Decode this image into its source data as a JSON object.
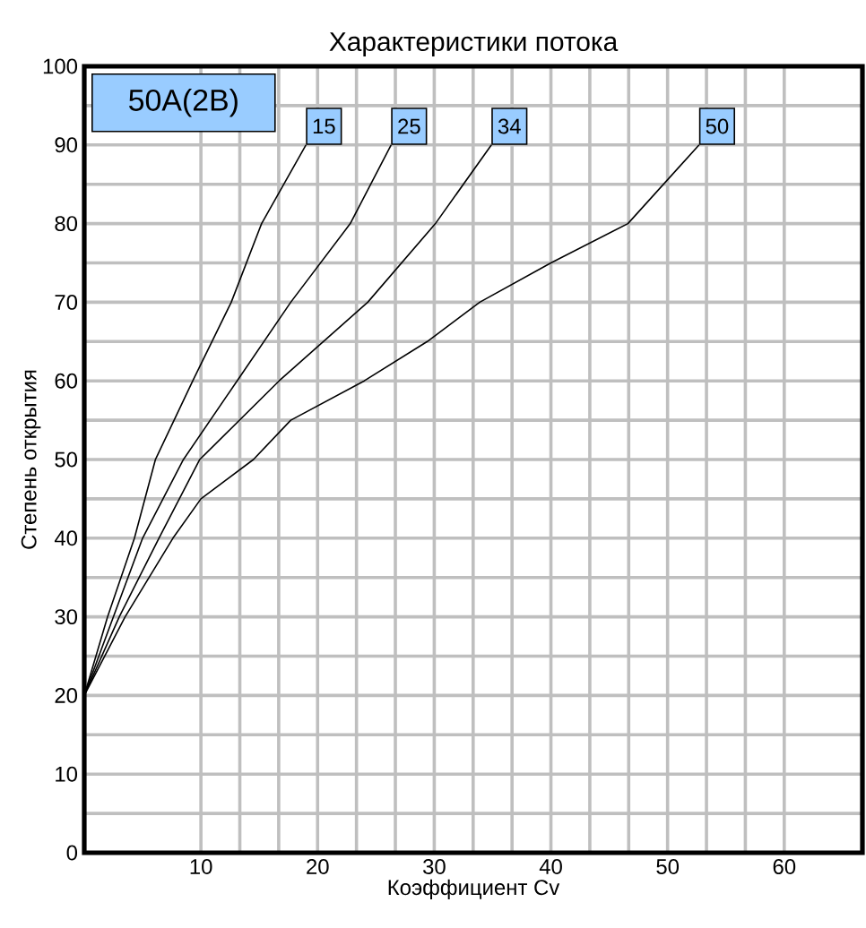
{
  "chart_data": {
    "type": "line",
    "title": "Характеристики потока",
    "xlabel": "Коэффициент Cv",
    "ylabel": "Степень открытия",
    "annotations": [
      "50A(2B)"
    ],
    "xlim": [
      0,
      66.7
    ],
    "ylim": [
      0,
      100
    ],
    "xticks": [
      10,
      20,
      30,
      40,
      50,
      60
    ],
    "yticks": [
      0,
      10,
      20,
      30,
      40,
      50,
      60,
      70,
      80,
      90,
      100
    ],
    "grid": true,
    "legend": false,
    "marker": "none",
    "line_style": "solid",
    "series": [
      {
        "name": "15",
        "color": "#000000",
        "x": [
          0,
          2.0,
          4.3,
          6.1,
          9.3,
          12.6,
          15.2,
          19.0
        ],
        "values": [
          20,
          30,
          40,
          50,
          60,
          70,
          80,
          90
        ]
      },
      {
        "name": "25",
        "color": "#000000",
        "x": [
          0,
          2.5,
          5.0,
          8.5,
          13.1,
          17.7,
          22.8,
          26.3
        ],
        "values": [
          20,
          30,
          40,
          50,
          60,
          70,
          80,
          90
        ]
      },
      {
        "name": "34",
        "color": "#000000",
        "x": [
          0,
          3.0,
          6.4,
          9.9,
          16.7,
          24.3,
          30.1,
          34.9
        ],
        "values": [
          20,
          30,
          40,
          50,
          60,
          70,
          80,
          90
        ]
      },
      {
        "name": "50",
        "color": "#000000",
        "x": [
          0,
          3.5,
          7.6,
          10.0,
          14.5,
          17.7,
          24.0,
          29.4,
          33.9,
          40.0,
          46.6,
          52.7
        ],
        "values": [
          20,
          30,
          40,
          45,
          50,
          55,
          60,
          65,
          70,
          75,
          80,
          90
        ]
      }
    ]
  }
}
